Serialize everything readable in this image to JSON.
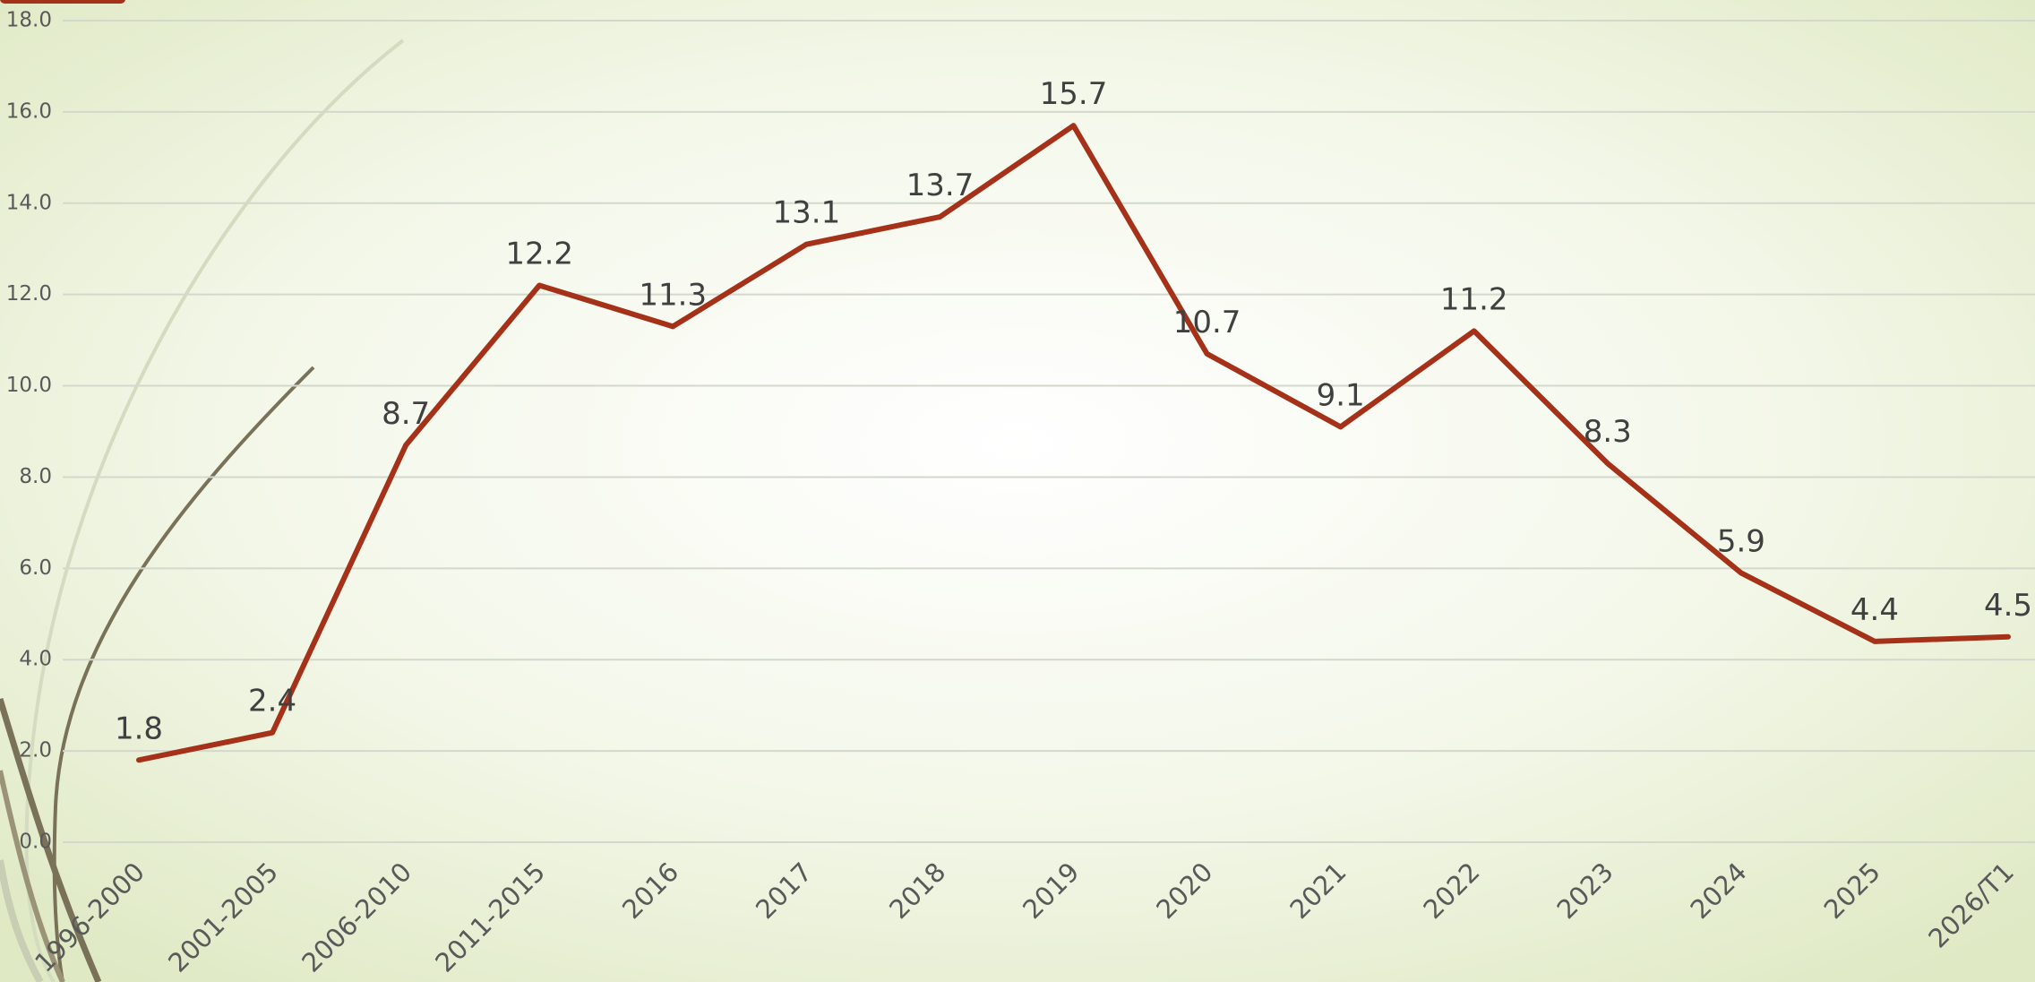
{
  "chart_data": {
    "type": "line",
    "categories": [
      "1996-2000",
      "2001-2005",
      "2006-2010",
      "2011-2015",
      "2016",
      "2017",
      "2018",
      "2019",
      "2020",
      "2021",
      "2022",
      "2023",
      "2024",
      "2025",
      "2026/T1"
    ],
    "series": [
      {
        "color": "#a53119",
        "values": [
          1.8,
          2.4,
          8.7,
          12.2,
          11.3,
          13.1,
          13.7,
          15.7,
          10.7,
          9.1,
          11.2,
          8.3,
          5.9,
          4.4,
          4.5
        ]
      }
    ],
    "ylim": [
      0,
      18
    ],
    "yticks": [
      {
        "value": 0,
        "label": "0.0"
      },
      {
        "value": 2,
        "label": "2.0"
      },
      {
        "value": 4,
        "label": "4.0"
      },
      {
        "value": 6,
        "label": "6.0"
      },
      {
        "value": 8,
        "label": "8.0"
      },
      {
        "value": 10,
        "label": "10.0"
      },
      {
        "value": 12,
        "label": "12.0"
      },
      {
        "value": 14,
        "label": "14.0"
      },
      {
        "value": 16,
        "label": "16.0"
      },
      {
        "value": 18,
        "label": "18.0"
      }
    ],
    "grid": true
  }
}
